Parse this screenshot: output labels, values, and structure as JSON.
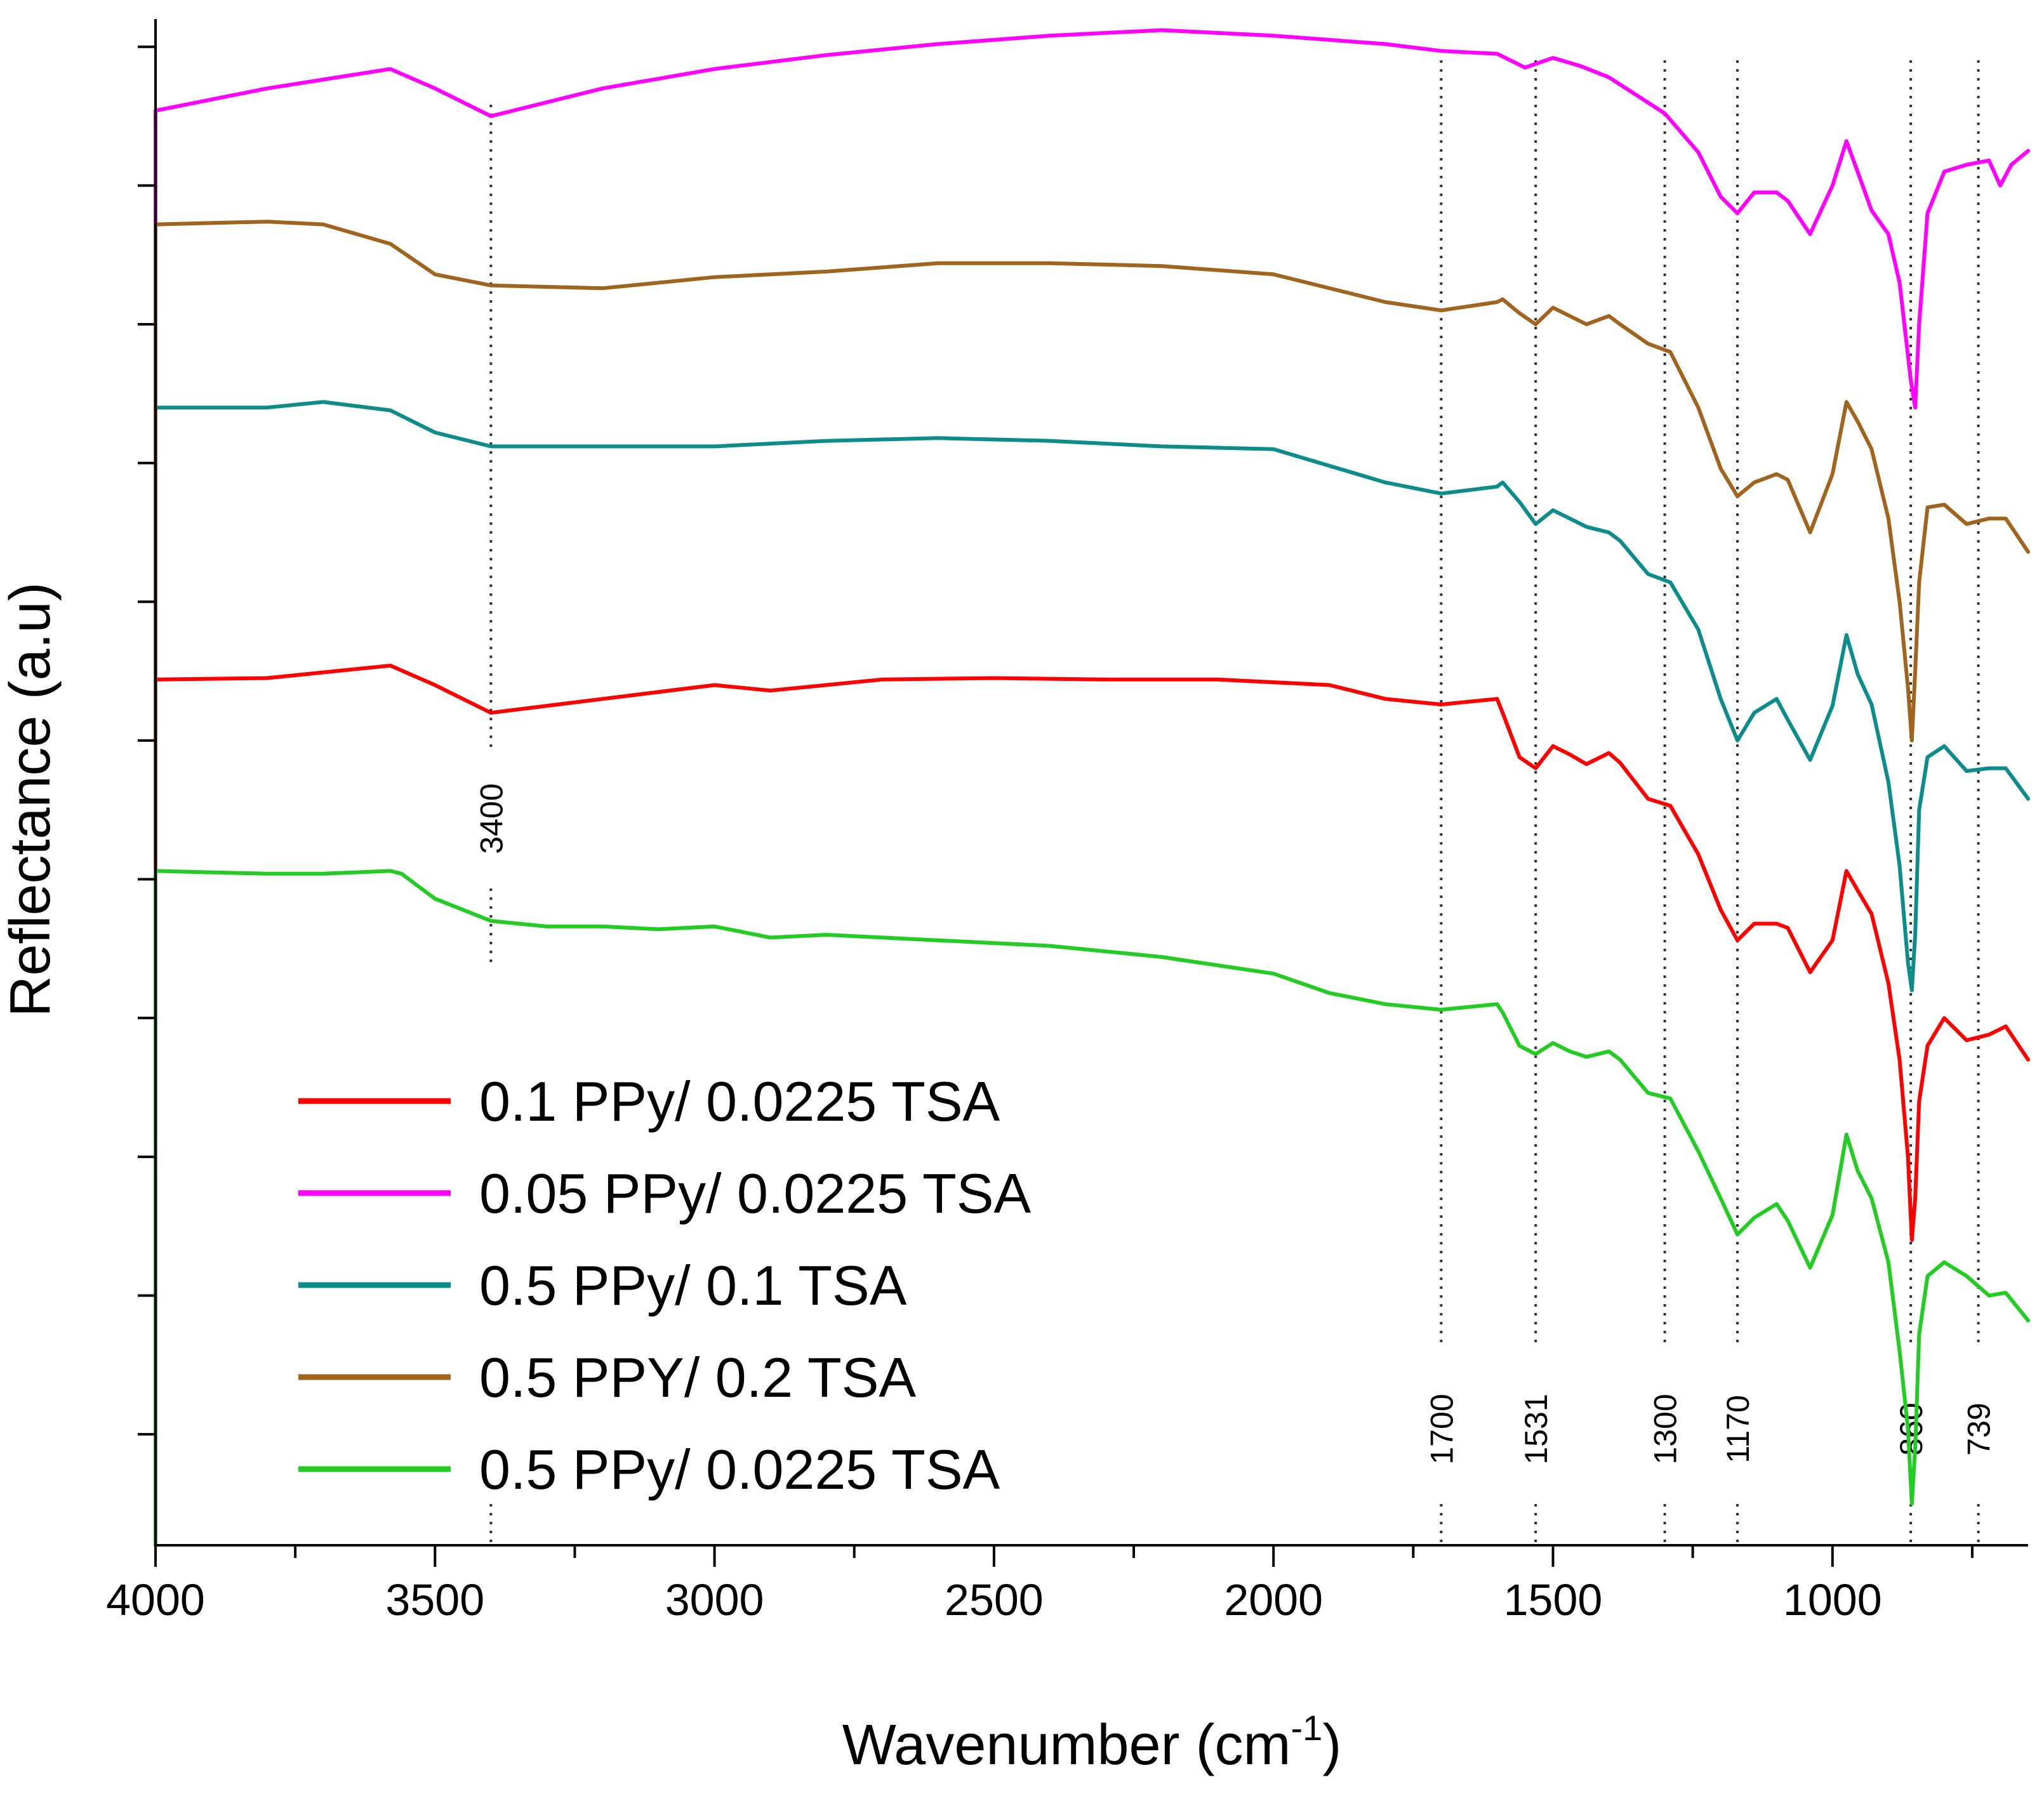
{
  "chart_data": {
    "type": "line",
    "title": "",
    "xlabel": "Wavenumber (cm",
    "xlabel_superscript": "-1",
    "xlabel_suffix": ")",
    "ylabel": "Reflectance (a.u)",
    "xlim": [
      4000,
      650
    ],
    "x_reversed": true,
    "ylim": [
      0,
      11
    ],
    "x_ticks": [
      4000,
      3500,
      3000,
      2500,
      2000,
      1500,
      1000
    ],
    "x_tick_labels": [
      "4000",
      "3500",
      "3000",
      "2500",
      "2000",
      "1500",
      "1000"
    ],
    "y_tick_labels_shown": false,
    "grid": false,
    "legend_position": "lower-left",
    "annotations": [
      {
        "x": 3400,
        "label": "3400"
      },
      {
        "x": 1700,
        "label": "1700"
      },
      {
        "x": 1531,
        "label": "1531"
      },
      {
        "x": 1300,
        "label": "1300"
      },
      {
        "x": 1170,
        "label": "1170"
      },
      {
        "x": 860,
        "label": "860"
      },
      {
        "x": 739,
        "label": "739"
      }
    ],
    "series": [
      {
        "name": "0.1 PPy/ 0.0225 TSA",
        "color": "#ff0000",
        "x": [
          4000,
          3800,
          3580,
          3500,
          3400,
          3200,
          3000,
          2900,
          2700,
          2500,
          2300,
          2100,
          1900,
          1800,
          1700,
          1600,
          1590,
          1560,
          1531,
          1500,
          1470,
          1440,
          1400,
          1380,
          1330,
          1290,
          1240,
          1200,
          1170,
          1140,
          1100,
          1080,
          1040,
          1000,
          975,
          955,
          930,
          900,
          880,
          865,
          858,
          852,
          845,
          830,
          800,
          760,
          720,
          690,
          650
        ],
        "y": [
          6.24,
          6.25,
          6.34,
          6.2,
          6.0,
          6.1,
          6.2,
          6.16,
          6.24,
          6.25,
          6.24,
          6.24,
          6.2,
          6.1,
          6.06,
          6.1,
          6.0,
          5.68,
          5.6,
          5.76,
          5.7,
          5.63,
          5.71,
          5.64,
          5.38,
          5.33,
          4.98,
          4.58,
          4.36,
          4.48,
          4.48,
          4.45,
          4.13,
          4.36,
          4.86,
          4.72,
          4.55,
          4.05,
          3.5,
          2.8,
          2.2,
          2.5,
          3.2,
          3.6,
          3.8,
          3.64,
          3.68,
          3.74,
          3.5
        ]
      },
      {
        "name": "0.05 PPy/ 0.0225 TSA",
        "color": "#ff00ff",
        "x": [
          4000,
          3800,
          3580,
          3500,
          3400,
          3200,
          3000,
          2800,
          2600,
          2400,
          2200,
          2000,
          1800,
          1700,
          1600,
          1550,
          1500,
          1450,
          1400,
          1300,
          1240,
          1200,
          1170,
          1140,
          1100,
          1080,
          1040,
          1000,
          975,
          955,
          930,
          900,
          880,
          860,
          852,
          845,
          830,
          800,
          760,
          720,
          700,
          680,
          650
        ],
        "y": [
          10.34,
          10.5,
          10.64,
          10.5,
          10.3,
          10.5,
          10.64,
          10.74,
          10.82,
          10.88,
          10.92,
          10.88,
          10.82,
          10.77,
          10.75,
          10.65,
          10.72,
          10.66,
          10.58,
          10.32,
          10.04,
          9.72,
          9.6,
          9.75,
          9.75,
          9.69,
          9.45,
          9.8,
          10.12,
          9.9,
          9.62,
          9.45,
          9.1,
          8.4,
          8.2,
          8.8,
          9.6,
          9.9,
          9.95,
          9.98,
          9.8,
          9.95,
          10.05
        ]
      },
      {
        "name": "0.5 PPy/ 0.1 TSA",
        "color": "#0d8c8c",
        "x": [
          4000,
          3800,
          3700,
          3580,
          3500,
          3400,
          3200,
          3000,
          2800,
          2600,
          2400,
          2200,
          2000,
          1800,
          1700,
          1600,
          1590,
          1560,
          1531,
          1500,
          1470,
          1440,
          1400,
          1380,
          1330,
          1290,
          1240,
          1200,
          1170,
          1140,
          1100,
          1080,
          1040,
          1000,
          975,
          955,
          930,
          900,
          880,
          865,
          858,
          852,
          845,
          830,
          800,
          760,
          720,
          690,
          650
        ],
        "y": [
          8.2,
          8.2,
          8.24,
          8.18,
          8.02,
          7.92,
          7.92,
          7.92,
          7.96,
          7.98,
          7.96,
          7.92,
          7.9,
          7.66,
          7.58,
          7.63,
          7.66,
          7.52,
          7.36,
          7.46,
          7.4,
          7.34,
          7.3,
          7.24,
          7.0,
          6.94,
          6.6,
          6.1,
          5.8,
          6.0,
          6.1,
          5.95,
          5.66,
          6.05,
          6.56,
          6.28,
          6.06,
          5.5,
          4.9,
          4.2,
          4.0,
          4.4,
          5.3,
          5.68,
          5.76,
          5.58,
          5.6,
          5.6,
          5.38
        ]
      },
      {
        "name": "0.5 PPY/ 0.2 TSA",
        "color": "#a0641e",
        "x": [
          4000,
          3800,
          3700,
          3580,
          3500,
          3400,
          3200,
          3000,
          2800,
          2600,
          2400,
          2200,
          2000,
          1800,
          1700,
          1600,
          1590,
          1560,
          1531,
          1500,
          1470,
          1440,
          1400,
          1380,
          1330,
          1290,
          1240,
          1200,
          1170,
          1140,
          1100,
          1080,
          1040,
          1000,
          975,
          955,
          930,
          900,
          880,
          865,
          858,
          852,
          845,
          830,
          800,
          760,
          720,
          690,
          650
        ],
        "y": [
          9.52,
          9.54,
          9.52,
          9.38,
          9.16,
          9.08,
          9.06,
          9.14,
          9.18,
          9.24,
          9.24,
          9.22,
          9.16,
          8.96,
          8.9,
          8.96,
          8.98,
          8.88,
          8.8,
          8.92,
          8.86,
          8.8,
          8.86,
          8.8,
          8.66,
          8.6,
          8.2,
          7.76,
          7.56,
          7.66,
          7.72,
          7.68,
          7.3,
          7.72,
          8.24,
          8.1,
          7.9,
          7.4,
          6.8,
          6.18,
          5.8,
          6.3,
          6.94,
          7.48,
          7.5,
          7.36,
          7.4,
          7.4,
          7.16
        ]
      },
      {
        "name": "0.5 PPy/ 0.0225 TSA",
        "color": "#22cc22",
        "x": [
          4000,
          3800,
          3700,
          3580,
          3560,
          3500,
          3400,
          3300,
          3200,
          3100,
          3000,
          2900,
          2800,
          2600,
          2400,
          2200,
          2000,
          1900,
          1800,
          1700,
          1600,
          1590,
          1560,
          1531,
          1500,
          1470,
          1440,
          1400,
          1380,
          1330,
          1290,
          1240,
          1200,
          1170,
          1140,
          1100,
          1080,
          1040,
          1000,
          975,
          955,
          930,
          900,
          880,
          865,
          858,
          852,
          845,
          830,
          800,
          760,
          720,
          690,
          650
        ],
        "y": [
          4.86,
          4.84,
          4.84,
          4.86,
          4.84,
          4.66,
          4.5,
          4.46,
          4.46,
          4.44,
          4.46,
          4.38,
          4.4,
          4.36,
          4.32,
          4.24,
          4.12,
          3.98,
          3.9,
          3.86,
          3.9,
          3.84,
          3.6,
          3.54,
          3.62,
          3.56,
          3.52,
          3.56,
          3.5,
          3.26,
          3.22,
          2.84,
          2.5,
          2.24,
          2.36,
          2.46,
          2.34,
          2.0,
          2.38,
          2.96,
          2.7,
          2.5,
          2.04,
          1.4,
          0.84,
          0.3,
          0.7,
          1.52,
          1.94,
          2.04,
          1.94,
          1.8,
          1.82,
          1.62
        ]
      }
    ],
    "legend_order": [
      0,
      1,
      2,
      3,
      4
    ]
  }
}
